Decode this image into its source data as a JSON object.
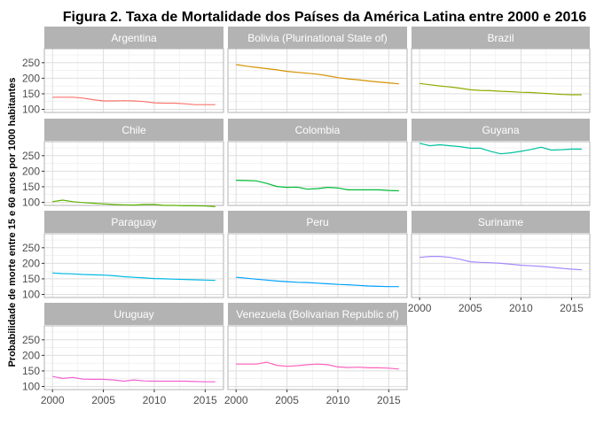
{
  "chart_data": {
    "type": "line",
    "title": "Figura 2. Taxa de Mortalidade dos Países da América Latina entre 2000 e 2016",
    "ylabel": "Probabilidade de morte entre 15 e 60 anos por 1000 habitantes",
    "xlabel": "",
    "x": [
      2000,
      2001,
      2002,
      2003,
      2004,
      2005,
      2006,
      2007,
      2008,
      2009,
      2010,
      2011,
      2012,
      2013,
      2014,
      2015,
      2016
    ],
    "xlim": [
      1999.2,
      2016.8
    ],
    "ylim": [
      90,
      295
    ],
    "x_ticks": [
      "2000",
      "2005",
      "2010",
      "2015"
    ],
    "y_ticks": [
      "100",
      "150",
      "200",
      "250"
    ],
    "grid": true,
    "legend": "none",
    "facets": [
      {
        "name": "Argentina",
        "color": "#F8766D",
        "values": [
          139,
          139,
          139,
          136,
          131,
          127,
          127,
          128,
          127,
          125,
          121,
          120,
          120,
          118,
          115,
          115,
          115
        ]
      },
      {
        "name": "Bolivia (Plurinational State of)",
        "color": "#D39200",
        "values": [
          244,
          239,
          235,
          231,
          227,
          222,
          219,
          216,
          213,
          208,
          202,
          198,
          195,
          191,
          188,
          185,
          182
        ]
      },
      {
        "name": "Brazil",
        "color": "#93AA00",
        "values": [
          183,
          179,
          175,
          172,
          168,
          163,
          161,
          160,
          158,
          157,
          155,
          154,
          152,
          150,
          148,
          147,
          147
        ]
      },
      {
        "name": "Chile",
        "color": "#5BB300",
        "values": [
          102,
          107,
          102,
          99,
          97,
          95,
          93,
          92,
          91,
          93,
          93,
          90,
          90,
          89,
          89,
          88,
          86
        ]
      },
      {
        "name": "Colombia",
        "color": "#00BA38",
        "values": [
          171,
          170,
          169,
          161,
          151,
          148,
          149,
          142,
          144,
          148,
          146,
          140,
          140,
          140,
          140,
          138,
          137
        ]
      },
      {
        "name": "Guyana",
        "color": "#00C19F",
        "values": [
          290,
          282,
          285,
          282,
          279,
          274,
          274,
          264,
          256,
          259,
          264,
          270,
          277,
          268,
          269,
          271,
          271
        ]
      },
      {
        "name": "Paraguay",
        "color": "#00B9E3",
        "values": [
          169,
          167,
          166,
          164,
          163,
          162,
          160,
          157,
          155,
          153,
          151,
          150,
          149,
          148,
          147,
          146,
          145
        ]
      },
      {
        "name": "Peru",
        "color": "#00A1FF",
        "values": [
          155,
          152,
          149,
          146,
          143,
          141,
          139,
          138,
          136,
          134,
          132,
          131,
          129,
          127,
          126,
          125,
          125
        ]
      },
      {
        "name": "Suriname",
        "color": "#A58AFF",
        "values": [
          219,
          222,
          222,
          219,
          213,
          205,
          203,
          202,
          200,
          197,
          194,
          192,
          190,
          187,
          184,
          181,
          179
        ]
      },
      {
        "name": "Uruguay",
        "color": "#F062D2",
        "values": [
          132,
          126,
          129,
          124,
          123,
          123,
          121,
          117,
          121,
          118,
          117,
          117,
          117,
          117,
          116,
          115,
          115
        ]
      },
      {
        "name": "Venezuela (Bolivarian Republic of)",
        "color": "#FF62BC",
        "values": [
          172,
          172,
          172,
          178,
          168,
          165,
          167,
          170,
          172,
          170,
          163,
          161,
          162,
          160,
          160,
          159,
          156
        ]
      }
    ]
  }
}
